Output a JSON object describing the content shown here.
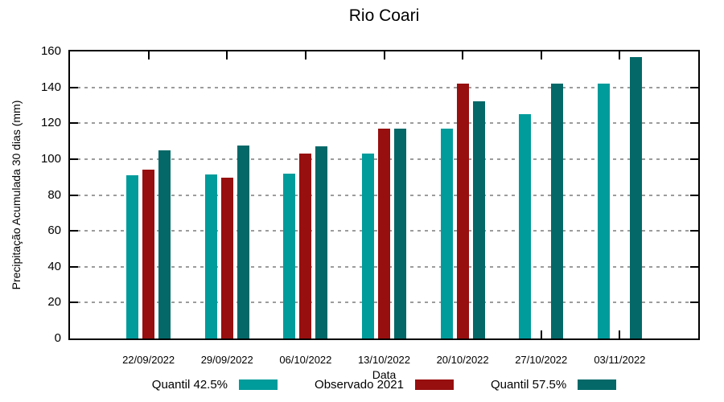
{
  "title": "Rio Coari",
  "chart_data": {
    "type": "bar",
    "title": "Rio Coari",
    "xlabel": "Data",
    "ylabel": "Precipitação Acumulada 30 dias (mm)",
    "ylim": [
      0,
      160
    ],
    "yticks": [
      0,
      20,
      40,
      60,
      80,
      100,
      120,
      140,
      160
    ],
    "grid": true,
    "grid_color": "#9c9c9c",
    "legend_position": "bottom-center",
    "categories": [
      "22/09/2022",
      "29/09/2022",
      "06/10/2022",
      "13/10/2022",
      "20/10/2022",
      "27/10/2022",
      "03/11/2022"
    ],
    "series": [
      {
        "name": "Quantil 42.5%",
        "color": "#009B9B",
        "values": [
          91,
          91.5,
          92,
          103,
          117,
          125,
          142
        ]
      },
      {
        "name": "Observado 2021",
        "color": "#970F0F",
        "values": [
          94,
          89.5,
          103,
          117,
          142,
          null,
          null
        ]
      },
      {
        "name": "Quantil 57.5%",
        "color": "#046868",
        "values": [
          105,
          107.5,
          107,
          117,
          132,
          142,
          157
        ]
      }
    ]
  }
}
